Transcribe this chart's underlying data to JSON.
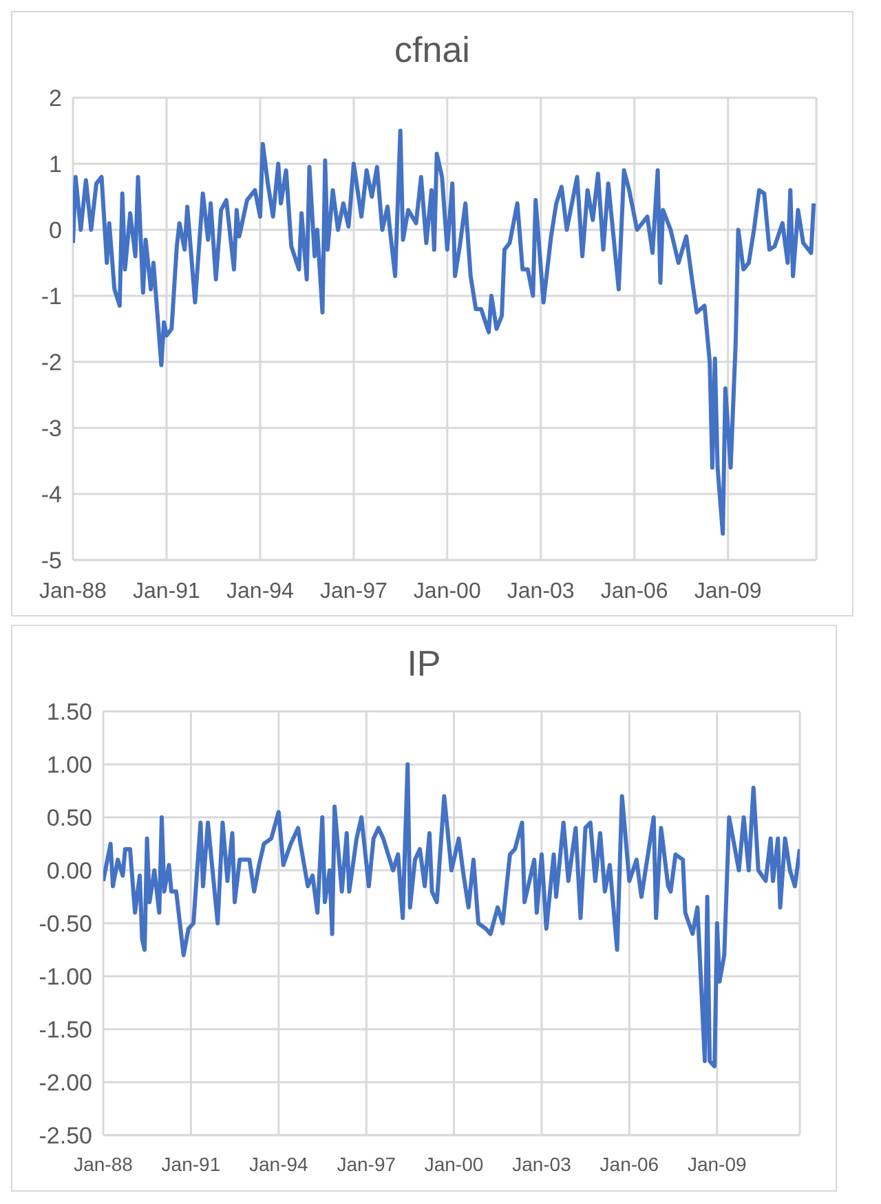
{
  "chart_data": [
    {
      "type": "line",
      "title": "cfnai",
      "grid": true,
      "legend": false,
      "marker": "none",
      "line_style": "solid",
      "xlim": [
        "1988-01",
        "2011-11"
      ],
      "xticks": [
        {
          "value": "1988-01",
          "label": "Jan-88"
        },
        {
          "value": "1991-01",
          "label": "Jan-91"
        },
        {
          "value": "1994-01",
          "label": "Jan-94"
        },
        {
          "value": "1997-01",
          "label": "Jan-97"
        },
        {
          "value": "2000-01",
          "label": "Jan-00"
        },
        {
          "value": "2003-01",
          "label": "Jan-03"
        },
        {
          "value": "2006-01",
          "label": "Jan-06"
        },
        {
          "value": "2009-01",
          "label": "Jan-09"
        }
      ],
      "ylim": [
        -5,
        2
      ],
      "yticks": [
        -5,
        -4,
        -3,
        -2,
        -1,
        0,
        1,
        2
      ],
      "x": [
        "1988-01",
        "1988-02",
        "1988-04",
        "1988-06",
        "1988-08",
        "1988-10",
        "1988-12",
        "1989-02",
        "1989-03",
        "1989-05",
        "1989-07",
        "1989-08",
        "1989-09",
        "1989-11",
        "1990-01",
        "1990-02",
        "1990-04",
        "1990-05",
        "1990-07",
        "1990-08",
        "1990-11",
        "1990-12",
        "1991-01",
        "1991-03",
        "1991-05",
        "1991-06",
        "1991-08",
        "1991-09",
        "1991-12",
        "1992-03",
        "1992-05",
        "1992-06",
        "1992-08",
        "1992-10",
        "1992-12",
        "1993-03",
        "1993-04",
        "1993-05",
        "1993-08",
        "1993-11",
        "1994-01",
        "1994-02",
        "1994-04",
        "1994-06",
        "1994-08",
        "1994-09",
        "1994-11",
        "1995-01",
        "1995-04",
        "1995-05",
        "1995-07",
        "1995-08",
        "1995-10",
        "1995-11",
        "1996-01",
        "1996-02",
        "1996-03",
        "1996-05",
        "1996-07",
        "1996-09",
        "1996-11",
        "1997-01",
        "1997-04",
        "1997-06",
        "1997-08",
        "1997-10",
        "1997-12",
        "1998-02",
        "1998-03",
        "1998-05",
        "1998-07",
        "1998-08",
        "1998-10",
        "1999-01",
        "1999-03",
        "1999-05",
        "1999-07",
        "1999-08",
        "1999-09",
        "1999-11",
        "2000-01",
        "2000-03",
        "2000-04",
        "2000-06",
        "2000-08",
        "2000-10",
        "2000-12",
        "2001-02",
        "2001-05",
        "2001-06",
        "2001-08",
        "2001-10",
        "2001-11",
        "2002-01",
        "2002-04",
        "2002-06",
        "2002-08",
        "2002-10",
        "2002-11",
        "2003-02",
        "2003-05",
        "2003-07",
        "2003-09",
        "2003-11",
        "2004-03",
        "2004-05",
        "2004-07",
        "2004-09",
        "2004-11",
        "2005-01",
        "2005-03",
        "2005-07",
        "2005-09",
        "2005-11",
        "2006-02",
        "2006-06",
        "2006-08",
        "2006-10",
        "2006-11",
        "2006-12",
        "2007-03",
        "2007-06",
        "2007-09",
        "2007-11",
        "2008-01",
        "2008-04",
        "2008-06",
        "2008-07",
        "2008-08",
        "2008-09",
        "2008-11",
        "2008-12",
        "2009-02",
        "2009-04",
        "2009-05",
        "2009-07",
        "2009-09",
        "2009-11",
        "2010-01",
        "2010-03",
        "2010-05",
        "2010-07",
        "2010-10",
        "2010-12",
        "2011-01",
        "2011-02",
        "2011-04",
        "2011-06",
        "2011-09",
        "2011-10"
      ],
      "series": [
        {
          "color": "#4472c4",
          "values": [
            -0.2,
            0.8,
            0.0,
            0.75,
            0.0,
            0.7,
            0.8,
            -0.5,
            0.1,
            -0.9,
            -1.15,
            0.55,
            -0.6,
            0.25,
            -0.4,
            0.8,
            -0.95,
            -0.15,
            -0.9,
            -0.5,
            -2.05,
            -1.4,
            -1.6,
            -1.5,
            -0.25,
            0.1,
            -0.3,
            0.35,
            -1.1,
            0.55,
            -0.15,
            0.4,
            -0.75,
            0.3,
            0.45,
            -0.6,
            0.3,
            -0.1,
            0.45,
            0.6,
            0.2,
            1.3,
            0.7,
            0.2,
            1.0,
            0.4,
            0.9,
            -0.25,
            -0.6,
            0.25,
            -0.75,
            0.95,
            -0.4,
            0.0,
            -1.25,
            1.05,
            -0.3,
            0.6,
            0.0,
            0.4,
            0.05,
            1.0,
            0.2,
            0.9,
            0.5,
            0.95,
            0.0,
            0.35,
            0.0,
            -0.7,
            1.5,
            -0.15,
            0.3,
            0.1,
            0.8,
            -0.2,
            0.6,
            -0.3,
            1.15,
            0.8,
            -0.3,
            0.7,
            -0.7,
            -0.2,
            0.4,
            -0.7,
            -1.2,
            -1.2,
            -1.55,
            -1.0,
            -1.5,
            -1.3,
            -0.3,
            -0.2,
            0.4,
            -0.6,
            -0.6,
            -1.0,
            0.45,
            -1.1,
            -0.1,
            0.4,
            0.65,
            0.0,
            0.8,
            -0.4,
            0.6,
            0.15,
            0.85,
            -0.3,
            0.7,
            -0.9,
            0.9,
            0.6,
            0.0,
            0.2,
            -0.35,
            0.9,
            -0.8,
            0.3,
            0.0,
            -0.5,
            -0.1,
            -0.7,
            -1.25,
            -1.15,
            -2.0,
            -3.6,
            -1.95,
            -3.6,
            -4.6,
            -2.4,
            -3.6,
            -1.7,
            0.0,
            -0.6,
            -0.5,
            0.0,
            0.6,
            0.55,
            -0.3,
            -0.25,
            0.1,
            -0.5,
            0.6,
            -0.7,
            0.3,
            -0.2,
            -0.35,
            0.4
          ]
        }
      ]
    },
    {
      "type": "line",
      "title": "IP",
      "grid": true,
      "legend": false,
      "marker": "none",
      "line_style": "solid",
      "xlim": [
        "1988-01",
        "2011-11"
      ],
      "xticks": [
        {
          "value": "1988-01",
          "label": "Jan-88"
        },
        {
          "value": "1991-01",
          "label": "Jan-91"
        },
        {
          "value": "1994-01",
          "label": "Jan-94"
        },
        {
          "value": "1997-01",
          "label": "Jan-97"
        },
        {
          "value": "2000-01",
          "label": "Jan-00"
        },
        {
          "value": "2003-01",
          "label": "Jan-03"
        },
        {
          "value": "2006-01",
          "label": "Jan-06"
        },
        {
          "value": "2009-01",
          "label": "Jan-09"
        }
      ],
      "ylim": [
        -2.5,
        1.5
      ],
      "yticks": [
        {
          "value": -2.5,
          "label": "-2.50"
        },
        {
          "value": -2,
          "label": "-2.00"
        },
        {
          "value": -1.5,
          "label": "-1.50"
        },
        {
          "value": -1,
          "label": "-1.00"
        },
        {
          "value": -0.5,
          "label": "-0.50"
        },
        {
          "value": 0,
          "label": "0.00"
        },
        {
          "value": 0.5,
          "label": "0.50"
        },
        {
          "value": 1,
          "label": "1.00"
        },
        {
          "value": 1.5,
          "label": "1.50"
        }
      ],
      "x": [
        "1988-01",
        "1988-04",
        "1988-05",
        "1988-07",
        "1988-09",
        "1988-10",
        "1988-12",
        "1989-02",
        "1989-04",
        "1989-05",
        "1989-06",
        "1989-07",
        "1989-08",
        "1989-10",
        "1989-12",
        "1990-01",
        "1990-02",
        "1990-04",
        "1990-05",
        "1990-07",
        "1990-10",
        "1990-12",
        "1991-02",
        "1991-05",
        "1991-06",
        "1991-08",
        "1991-12",
        "1992-02",
        "1992-04",
        "1992-06",
        "1992-07",
        "1992-09",
        "1993-01",
        "1993-03",
        "1993-05",
        "1993-07",
        "1993-10",
        "1994-01",
        "1994-03",
        "1994-06",
        "1994-09",
        "1994-10",
        "1995-01",
        "1995-03",
        "1995-05",
        "1995-07",
        "1995-08",
        "1995-10",
        "1995-11",
        "1995-12",
        "1996-03",
        "1996-05",
        "1996-06",
        "1996-09",
        "1996-11",
        "1997-02",
        "1997-04",
        "1997-06",
        "1997-08",
        "1997-12",
        "1998-02",
        "1998-04",
        "1998-06",
        "1998-07",
        "1998-09",
        "1998-11",
        "1999-01",
        "1999-03",
        "1999-04",
        "1999-06",
        "1999-09",
        "1999-12",
        "2000-03",
        "2000-05",
        "2000-07",
        "2000-09",
        "2000-11",
        "2001-02",
        "2001-04",
        "2001-07",
        "2001-09",
        "2001-12",
        "2002-02",
        "2002-05",
        "2002-06",
        "2002-10",
        "2002-11",
        "2003-01",
        "2003-03",
        "2003-06",
        "2003-07",
        "2003-10",
        "2003-12",
        "2004-03",
        "2004-05",
        "2004-07",
        "2004-09",
        "2004-11",
        "2005-01",
        "2005-03",
        "2005-05",
        "2005-08",
        "2005-10",
        "2006-01",
        "2006-04",
        "2006-06",
        "2006-11",
        "2006-12",
        "2007-02",
        "2007-05",
        "2007-06",
        "2007-08",
        "2007-11",
        "2007-12",
        "2008-03",
        "2008-05",
        "2008-08",
        "2008-09",
        "2008-10",
        "2008-12",
        "2009-01",
        "2009-02",
        "2009-04",
        "2009-06",
        "2009-08",
        "2009-10",
        "2009-12",
        "2010-02",
        "2010-04",
        "2010-06",
        "2010-09",
        "2010-11",
        "2010-12",
        "2011-02",
        "2011-03",
        "2011-05",
        "2011-07",
        "2011-09",
        "2011-11"
      ],
      "series": [
        {
          "color": "#4472c4",
          "values": [
            -0.1,
            0.25,
            -0.15,
            0.1,
            -0.05,
            0.2,
            0.2,
            -0.4,
            -0.05,
            -0.65,
            -0.75,
            0.3,
            -0.3,
            0.0,
            -0.4,
            0.5,
            -0.2,
            0.05,
            -0.2,
            -0.2,
            -0.8,
            -0.55,
            -0.5,
            0.45,
            -0.15,
            0.45,
            -0.5,
            0.45,
            -0.1,
            0.35,
            -0.3,
            0.1,
            0.1,
            -0.2,
            0.05,
            0.25,
            0.3,
            0.55,
            0.05,
            0.25,
            0.4,
            0.25,
            -0.15,
            -0.05,
            -0.4,
            0.5,
            -0.3,
            0.0,
            -0.6,
            0.6,
            -0.2,
            0.35,
            -0.2,
            0.3,
            0.5,
            -0.15,
            0.3,
            0.4,
            0.3,
            0.0,
            0.15,
            -0.45,
            1.0,
            -0.35,
            0.1,
            0.2,
            -0.15,
            0.35,
            -0.2,
            -0.3,
            0.7,
            0.0,
            0.3,
            -0.05,
            -0.35,
            0.1,
            -0.5,
            -0.55,
            -0.6,
            -0.35,
            -0.5,
            0.15,
            0.2,
            0.45,
            -0.3,
            0.1,
            -0.4,
            0.15,
            -0.55,
            0.15,
            -0.25,
            0.45,
            -0.1,
            0.4,
            -0.45,
            0.4,
            0.45,
            -0.1,
            0.35,
            -0.2,
            0.05,
            -0.75,
            0.7,
            -0.1,
            0.1,
            -0.25,
            0.5,
            -0.45,
            0.4,
            -0.15,
            -0.2,
            0.15,
            0.1,
            -0.4,
            -0.6,
            -0.35,
            -1.8,
            -0.25,
            -1.8,
            -1.85,
            -0.5,
            -1.05,
            -0.8,
            0.5,
            0.25,
            0.0,
            0.5,
            0.0,
            0.78,
            0.0,
            -0.1,
            0.3,
            -0.1,
            0.3,
            -0.35,
            0.3,
            0.0,
            -0.15,
            0.2
          ]
        }
      ]
    }
  ]
}
